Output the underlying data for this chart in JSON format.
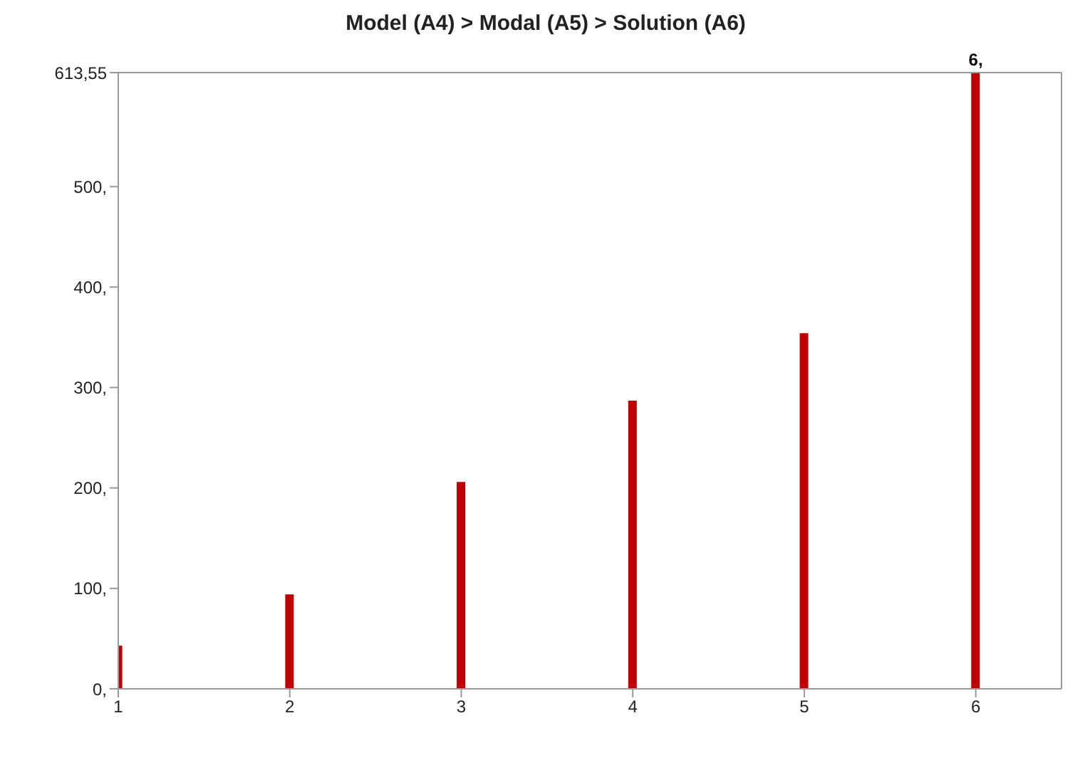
{
  "chart_data": {
    "type": "bar",
    "title": "Model (A4) > Modal (A5) > Solution (A6)",
    "x": [
      1,
      2,
      3,
      4,
      5,
      6
    ],
    "values": [
      43,
      94,
      206,
      287,
      354,
      613.55
    ],
    "color": "#c00000",
    "xlim": [
      1,
      6.5
    ],
    "xticks": [
      1,
      2,
      3,
      4,
      5,
      6
    ],
    "ylim": [
      0,
      613.55
    ],
    "yticks": [
      {
        "value": 0,
        "label": "0,"
      },
      {
        "value": 100,
        "label": "100,"
      },
      {
        "value": 200,
        "label": "200,"
      },
      {
        "value": 300,
        "label": "300,"
      },
      {
        "value": 400,
        "label": "400,"
      },
      {
        "value": 500,
        "label": "500,"
      },
      {
        "value": 613.55,
        "label": "613,55"
      }
    ],
    "annotations": [
      {
        "text": "6,",
        "x": 6,
        "y": 613.55
      }
    ],
    "grid": false,
    "legend": false
  }
}
